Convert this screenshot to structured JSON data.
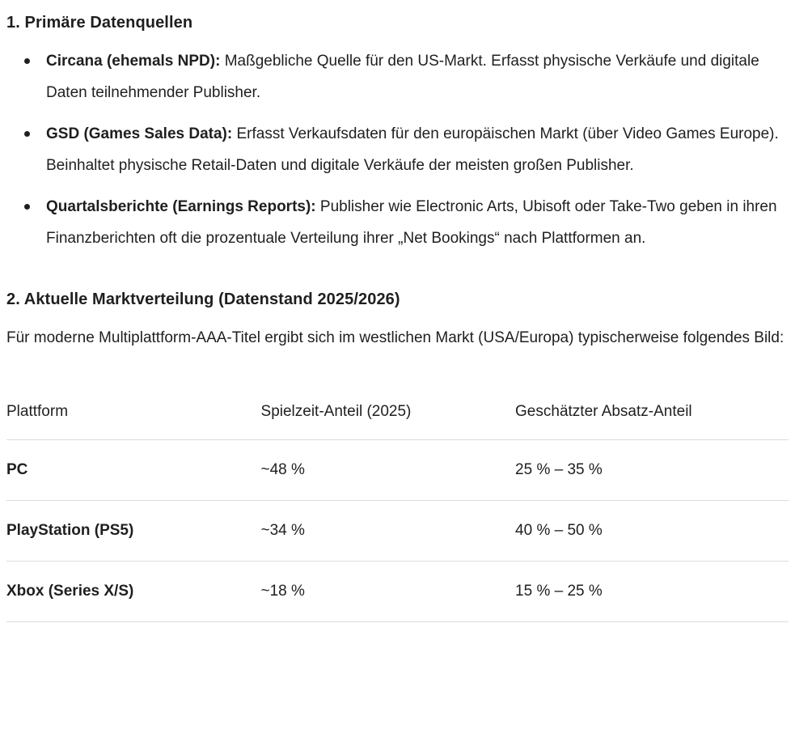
{
  "section1": {
    "heading": "1. Primäre Datenquellen",
    "bullets": [
      {
        "term": "Circana (ehemals NPD):",
        "description": "Maßgebliche Quelle für den US-Markt. Erfasst physische Verkäufe und digitale Daten teilnehmender Publisher."
      },
      {
        "term": "GSD (Games Sales Data):",
        "description": "Erfasst Verkaufsdaten für den europäischen Markt (über Video Games Europe). Beinhaltet physische Retail-Daten und digitale Verkäufe der meisten großen Publisher."
      },
      {
        "term": "Quartalsberichte (Earnings Reports):",
        "description": "Publisher wie Electronic Arts, Ubisoft oder Take-Two geben in ihren Finanzberichten oft die prozentuale Verteilung ihrer „Net Bookings“ nach Plattformen an."
      }
    ]
  },
  "section2": {
    "heading": "2. Aktuelle Marktverteilung (Datenstand 2025/2026)",
    "paragraph": "Für moderne Multiplattform-AAA-Titel ergibt sich im westlichen Markt (USA/Europa) typischerweise folgendes Bild:"
  },
  "table": {
    "headers": [
      "Plattform",
      "Spielzeit-Anteil (2025)",
      "Geschätzter Absatz-Anteil"
    ],
    "rows": [
      {
        "platform": "PC",
        "playtime": "~48 %",
        "sales": "25 % – 35 %"
      },
      {
        "platform": "PlayStation (PS5)",
        "playtime": "~34 %",
        "sales": "40 % – 50 %"
      },
      {
        "platform": "Xbox (Series X/S)",
        "playtime": "~18 %",
        "sales": "15 % – 25 %"
      }
    ]
  },
  "colors": {
    "text": "#1f1f1f",
    "table_border": "#dadce0"
  }
}
